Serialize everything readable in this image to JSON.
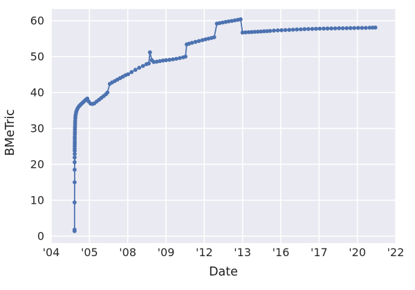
{
  "figure": {
    "background": "#ffffff",
    "plot_background": "#eaeaf2",
    "grid_color": "#ffffff",
    "accent_line_color": "#4c72b0",
    "text_color": "#262626"
  },
  "chart_data": {
    "type": "line",
    "title": "",
    "xlabel": "Date",
    "ylabel": "BMeTric",
    "grid": true,
    "legend_visible": false,
    "marker": "circle",
    "x_tick_labels": [
      "'04",
      "'05",
      "'08",
      "'09",
      "'12",
      "'13",
      "'16",
      "'17",
      "'20",
      "'22"
    ],
    "y_ticks": [
      0,
      10,
      20,
      30,
      40,
      50,
      60
    ],
    "y_tick_labels": [
      "0",
      "10",
      "20",
      "30",
      "40",
      "50",
      "60"
    ],
    "ylim": [
      -1.9,
      63.3
    ],
    "x_units_note": "x in tick-index units: 0='04, 1='05, 2='08, 3='09, 4='12, 5='13, 6='16, 7='17, 8='20, 9='22 (ticks evenly spaced)",
    "series": [
      {
        "name": "BMeTric",
        "color": "#4c72b0",
        "points": [
          [
            0.61,
            1.4
          ],
          [
            0.61,
            1.8
          ],
          [
            0.611,
            9.4
          ],
          [
            0.612,
            15.0
          ],
          [
            0.612,
            18.5
          ],
          [
            0.613,
            20.6
          ],
          [
            0.613,
            21.9
          ],
          [
            0.614,
            22.9
          ],
          [
            0.614,
            23.8
          ],
          [
            0.615,
            24.4
          ],
          [
            0.615,
            25.1
          ],
          [
            0.616,
            25.7
          ],
          [
            0.616,
            26.3
          ],
          [
            0.617,
            27.0
          ],
          [
            0.617,
            27.6
          ],
          [
            0.618,
            28.3
          ],
          [
            0.619,
            28.9
          ],
          [
            0.62,
            29.6
          ],
          [
            0.621,
            30.2
          ],
          [
            0.623,
            30.8
          ],
          [
            0.625,
            31.5
          ],
          [
            0.627,
            32.1
          ],
          [
            0.63,
            32.8
          ],
          [
            0.634,
            33.4
          ],
          [
            0.643,
            34.0
          ],
          [
            0.655,
            34.6
          ],
          [
            0.67,
            35.1
          ],
          [
            0.69,
            35.6
          ],
          [
            0.715,
            36.0
          ],
          [
            0.74,
            36.3
          ],
          [
            0.765,
            36.6
          ],
          [
            0.795,
            36.9
          ],
          [
            0.825,
            37.2
          ],
          [
            0.855,
            37.5
          ],
          [
            0.885,
            37.8
          ],
          [
            0.915,
            38.1
          ],
          [
            0.945,
            38.3
          ],
          [
            0.98,
            37.5
          ],
          [
            1.03,
            36.9
          ],
          [
            1.08,
            36.8
          ],
          [
            1.13,
            37.0
          ],
          [
            1.19,
            37.5
          ],
          [
            1.25,
            38.0
          ],
          [
            1.31,
            38.5
          ],
          [
            1.37,
            39.0
          ],
          [
            1.43,
            39.5
          ],
          [
            1.47,
            40.0
          ],
          [
            1.53,
            42.4
          ],
          [
            1.59,
            42.8
          ],
          [
            1.66,
            43.2
          ],
          [
            1.73,
            43.6
          ],
          [
            1.8,
            44.0
          ],
          [
            1.87,
            44.4
          ],
          [
            1.94,
            44.8
          ],
          [
            2.01,
            45.1
          ],
          [
            2.1,
            45.7
          ],
          [
            2.2,
            46.3
          ],
          [
            2.3,
            46.9
          ],
          [
            2.4,
            47.4
          ],
          [
            2.49,
            47.9
          ],
          [
            2.55,
            48.1
          ],
          [
            2.58,
            51.2
          ],
          [
            2.63,
            49.0
          ],
          [
            2.68,
            48.5
          ],
          [
            2.76,
            48.6
          ],
          [
            2.84,
            48.75
          ],
          [
            2.92,
            48.9
          ],
          [
            3.0,
            49.0
          ],
          [
            3.09,
            49.1
          ],
          [
            3.18,
            49.25
          ],
          [
            3.27,
            49.4
          ],
          [
            3.36,
            49.6
          ],
          [
            3.45,
            49.8
          ],
          [
            3.51,
            50.0
          ],
          [
            3.54,
            53.4
          ],
          [
            3.6,
            53.6
          ],
          [
            3.68,
            53.85
          ],
          [
            3.77,
            54.1
          ],
          [
            3.86,
            54.35
          ],
          [
            3.95,
            54.6
          ],
          [
            4.03,
            54.8
          ],
          [
            4.11,
            55.0
          ],
          [
            4.19,
            55.2
          ],
          [
            4.26,
            55.4
          ],
          [
            4.33,
            59.2
          ],
          [
            4.4,
            59.35
          ],
          [
            4.48,
            59.5
          ],
          [
            4.56,
            59.65
          ],
          [
            4.64,
            59.8
          ],
          [
            4.72,
            59.95
          ],
          [
            4.8,
            60.1
          ],
          [
            4.88,
            60.25
          ],
          [
            4.95,
            60.4
          ],
          [
            5.0,
            56.7
          ],
          [
            5.08,
            56.75
          ],
          [
            5.16,
            56.8
          ],
          [
            5.24,
            56.85
          ],
          [
            5.32,
            56.9
          ],
          [
            5.4,
            56.95
          ],
          [
            5.48,
            57.0
          ],
          [
            5.56,
            57.05
          ],
          [
            5.64,
            57.1
          ],
          [
            5.72,
            57.15
          ],
          [
            5.82,
            57.25
          ],
          [
            5.92,
            57.3
          ],
          [
            6.02,
            57.35
          ],
          [
            6.12,
            57.4
          ],
          [
            6.22,
            57.45
          ],
          [
            6.32,
            57.5
          ],
          [
            6.42,
            57.55
          ],
          [
            6.52,
            57.6
          ],
          [
            6.62,
            57.65
          ],
          [
            6.72,
            57.7
          ],
          [
            6.82,
            57.72
          ],
          [
            6.92,
            57.75
          ],
          [
            7.02,
            57.78
          ],
          [
            7.12,
            57.8
          ],
          [
            7.22,
            57.82
          ],
          [
            7.32,
            57.85
          ],
          [
            7.42,
            57.87
          ],
          [
            7.52,
            57.9
          ],
          [
            7.62,
            57.9
          ],
          [
            7.72,
            57.92
          ],
          [
            7.82,
            57.95
          ],
          [
            7.92,
            57.97
          ],
          [
            8.02,
            58.0
          ],
          [
            8.12,
            58.0
          ],
          [
            8.22,
            58.0
          ],
          [
            8.32,
            58.05
          ],
          [
            8.4,
            58.07
          ],
          [
            8.47,
            58.1
          ]
        ]
      }
    ]
  }
}
